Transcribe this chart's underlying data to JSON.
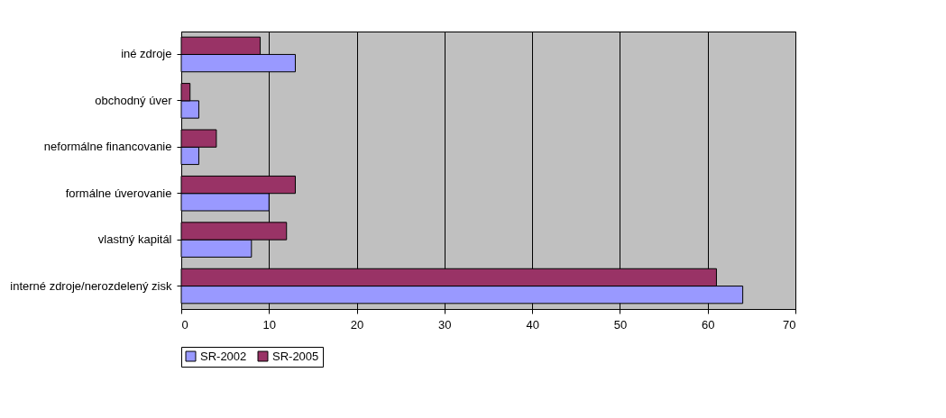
{
  "chart_data": {
    "type": "bar",
    "orientation": "horizontal",
    "categories": [
      "iné zdroje",
      "obchodný úver",
      "neformálne financovanie",
      "formálne úverovanie",
      "vlastný kapitál",
      "interné zdroje/nerozdelený zisk"
    ],
    "series": [
      {
        "name": "SR-2002",
        "color": "#9999ff",
        "values": [
          13,
          2,
          2,
          10,
          8,
          64
        ]
      },
      {
        "name": "SR-2005",
        "color": "#993366",
        "values": [
          9,
          1,
          4,
          13,
          12,
          61
        ]
      }
    ],
    "xlim": [
      0,
      70
    ],
    "xticks": [
      0,
      10,
      20,
      30,
      40,
      50,
      60,
      70
    ],
    "grid": "x",
    "legend": "bottom"
  }
}
